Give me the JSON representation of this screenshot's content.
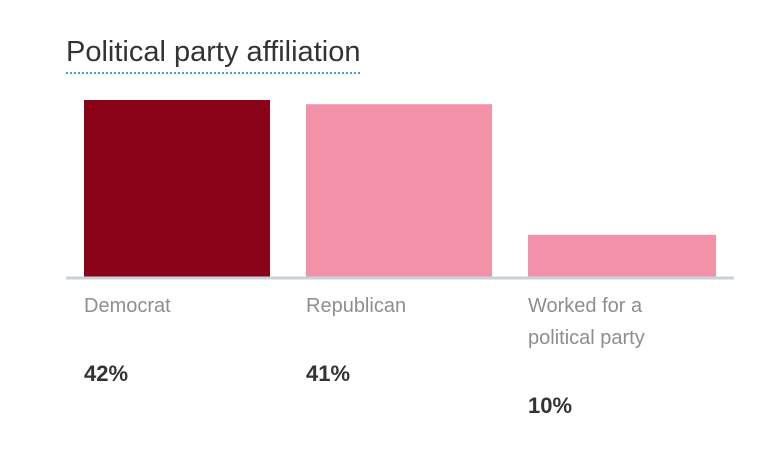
{
  "chart_data": {
    "type": "bar",
    "title": "Political party affiliation",
    "categories": [
      "Democrat",
      "Republican",
      "Worked for a political party"
    ],
    "category_lines": [
      [
        "Democrat"
      ],
      [
        "Republican"
      ],
      [
        "Worked for a",
        "political party"
      ]
    ],
    "values": [
      42,
      41,
      10
    ],
    "value_labels": [
      "42%",
      "41%",
      "10%"
    ],
    "colors": [
      "#8b0319",
      "#f291a8",
      "#f291a8"
    ],
    "axis_color": "#c9d2da",
    "ylim": [
      0,
      42
    ],
    "grid": false,
    "legend": "none"
  }
}
